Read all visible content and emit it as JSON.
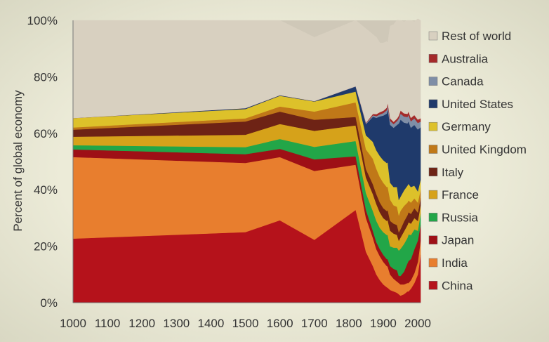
{
  "chart_data": {
    "type": "area",
    "stacked": true,
    "ylabel": "Percent of global economy",
    "xlabel": "",
    "xlim": [
      1000,
      2008
    ],
    "ylim": [
      0,
      100
    ],
    "x_ticks": [
      "1000",
      "1100",
      "1200",
      "1300",
      "1400",
      "1500",
      "1600",
      "1700",
      "1800",
      "1900",
      "2000"
    ],
    "y_ticks": [
      "0%",
      "20%",
      "40%",
      "60%",
      "80%",
      "100%"
    ],
    "legend_position": "right",
    "plot_background": "#cfc8b8",
    "x": [
      1000,
      1500,
      1600,
      1700,
      1820,
      1850,
      1870,
      1880,
      1890,
      1900,
      1910,
      1913,
      1920,
      1930,
      1940,
      1945,
      1950,
      1960,
      1970,
      1973,
      1980,
      1990,
      2000,
      2008
    ],
    "series": [
      {
        "name": "China",
        "color": "#b5121b",
        "values": [
          22.7,
          25.0,
          29.2,
          22.3,
          32.9,
          18.0,
          13.0,
          10.0,
          8.0,
          6.5,
          5.5,
          5.3,
          4.5,
          4.0,
          3.5,
          3.0,
          2.5,
          3.0,
          4.0,
          4.0,
          5.0,
          7.0,
          10.0,
          17.0
        ]
      },
      {
        "name": "India",
        "color": "#e87e2e",
        "values": [
          28.9,
          24.5,
          22.4,
          24.4,
          16.0,
          12.0,
          10.0,
          9.0,
          8.5,
          8.0,
          7.5,
          7.5,
          5.5,
          4.5,
          4.0,
          4.0,
          4.0,
          3.5,
          3.0,
          3.0,
          3.0,
          3.5,
          4.5,
          5.0
        ]
      },
      {
        "name": "Japan",
        "color": "#9e1016",
        "values": [
          2.7,
          3.1,
          2.9,
          4.1,
          3.0,
          2.8,
          2.5,
          2.5,
          2.5,
          2.5,
          2.5,
          2.6,
          3.0,
          3.5,
          4.0,
          2.5,
          3.0,
          4.5,
          7.0,
          7.8,
          7.5,
          8.5,
          7.5,
          5.5
        ]
      },
      {
        "name": "Russia",
        "color": "#22a648",
        "values": [
          1.5,
          2.5,
          3.5,
          4.4,
          5.4,
          6.0,
          7.0,
          7.5,
          7.5,
          8.0,
          8.5,
          8.6,
          7.0,
          7.5,
          8.0,
          9.0,
          9.6,
          9.8,
          9.0,
          9.4,
          8.5,
          7.0,
          3.5,
          4.0
        ]
      },
      {
        "name": "France",
        "color": "#d6a21a",
        "values": [
          3.0,
          4.4,
          5.3,
          5.7,
          5.5,
          5.5,
          6.0,
          6.0,
          5.5,
          5.0,
          5.0,
          5.3,
          5.5,
          5.0,
          4.5,
          3.5,
          4.0,
          4.5,
          4.5,
          4.3,
          4.0,
          4.0,
          3.5,
          3.0
        ]
      },
      {
        "name": "Italy",
        "color": "#6e2315",
        "values": [
          2.5,
          4.7,
          4.4,
          3.9,
          3.0,
          3.0,
          3.5,
          3.5,
          3.5,
          3.5,
          3.5,
          3.5,
          3.5,
          3.5,
          3.5,
          3.0,
          3.0,
          3.5,
          3.5,
          3.6,
          3.5,
          3.5,
          3.0,
          2.5
        ]
      },
      {
        "name": "United Kingdom",
        "color": "#c07818",
        "values": [
          0.8,
          1.1,
          1.8,
          2.9,
          5.2,
          7.0,
          9.0,
          9.0,
          9.0,
          9.0,
          8.5,
          8.3,
          7.5,
          6.5,
          6.5,
          6.0,
          6.5,
          5.5,
          4.5,
          4.2,
          4.0,
          3.5,
          3.5,
          3.0
        ]
      },
      {
        "name": "Germany",
        "color": "#ddc12a",
        "values": [
          3.3,
          3.3,
          3.8,
          3.6,
          3.8,
          5.0,
          6.0,
          6.5,
          7.5,
          8.0,
          8.5,
          8.7,
          6.0,
          6.5,
          7.0,
          5.5,
          5.0,
          5.5,
          6.0,
          5.9,
          5.5,
          4.5,
          4.0,
          3.5
        ]
      },
      {
        "name": "United States",
        "color": "#1f3a6b",
        "values": [
          0.0,
          0.3,
          0.2,
          0.1,
          1.8,
          4.0,
          8.9,
          11.5,
          14.0,
          15.8,
          17.5,
          18.9,
          20.5,
          21.0,
          22.0,
          27.0,
          27.3,
          24.0,
          22.0,
          22.1,
          21.0,
          21.5,
          21.9,
          18.6
        ]
      },
      {
        "name": "Canada",
        "color": "#7f8ea6",
        "values": [
          0.0,
          0.0,
          0.0,
          0.0,
          0.1,
          0.3,
          0.5,
          0.6,
          0.7,
          0.9,
          1.2,
          1.3,
          1.4,
          1.3,
          1.4,
          1.8,
          2.1,
          2.2,
          2.3,
          2.3,
          2.3,
          2.3,
          2.3,
          2.0
        ]
      },
      {
        "name": "Australia",
        "color": "#a42a2a",
        "values": [
          0.0,
          0.0,
          0.0,
          0.0,
          0.0,
          0.2,
          0.5,
          0.7,
          0.8,
          0.8,
          0.9,
          0.9,
          0.9,
          0.8,
          0.9,
          1.0,
          1.1,
          1.1,
          1.1,
          1.2,
          1.2,
          1.2,
          1.2,
          1.2
        ]
      },
      {
        "name": "Rest of world",
        "color": "#d8d0c0",
        "values": [
          34.6,
          31.1,
          26.5,
          22.6,
          23.3,
          33.2,
          28.1,
          27.2,
          24.5,
          24.0,
          23.4,
          21.1,
          32.7,
          34.4,
          34.8,
          33.7,
          31.9,
          32.4,
          33.1,
          32.2,
          34.5,
          33.0,
          35.6,
          34.7
        ]
      }
    ]
  }
}
